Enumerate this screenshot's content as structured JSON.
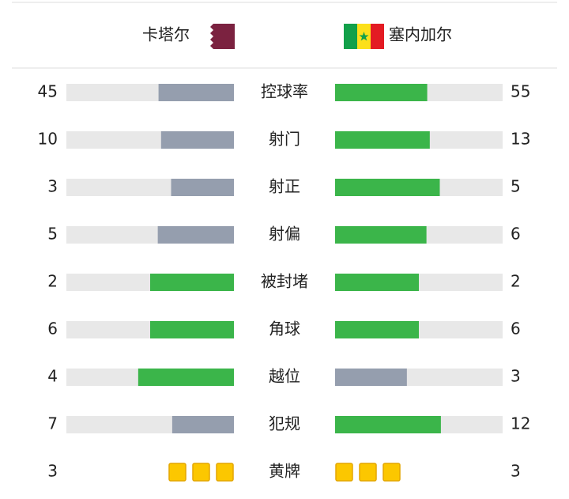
{
  "header": {
    "home": "卡塔尔",
    "away": "塞内加尔"
  },
  "stats": [
    {
      "label": "控球率",
      "home": 45,
      "away": 55
    },
    {
      "label": "射门",
      "home": 10,
      "away": 13
    },
    {
      "label": "射正",
      "home": 3,
      "away": 5
    },
    {
      "label": "射偏",
      "home": 5,
      "away": 6
    },
    {
      "label": "被封堵",
      "home": 2,
      "away": 2
    },
    {
      "label": "角球",
      "home": 6,
      "away": 6
    },
    {
      "label": "越位",
      "home": 4,
      "away": 3
    },
    {
      "label": "犯规",
      "home": 7,
      "away": 12
    },
    {
      "label": "黄牌",
      "home": 3,
      "away": 3,
      "style": "cards"
    }
  ]
}
